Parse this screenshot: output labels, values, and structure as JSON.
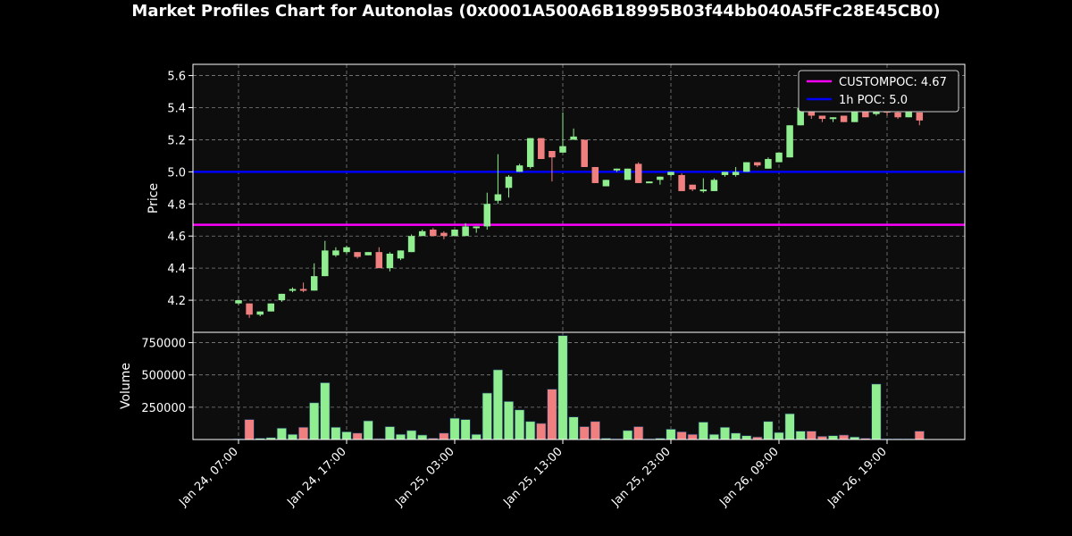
{
  "title": "Market Profiles Chart for Autonolas (0x0001A500A6B18995B03f44bb040A5fFc28E45CB0)",
  "colors": {
    "background": "#000000",
    "plot_background": "#0d0d0d",
    "up": "#90ee90",
    "down": "#f08080",
    "text": "#ffffff",
    "grid": "#808080",
    "custompoc": "#ff00ff",
    "poc_1h": "#0000ff"
  },
  "chart_data": [
    {
      "type": "candlestick",
      "ylabel": "Price",
      "ylim": [
        4.0,
        5.67
      ],
      "yticks": [
        4.2,
        4.4,
        4.6,
        4.8,
        5.0,
        5.2,
        5.4,
        5.6
      ],
      "ytick_labels": [
        "4.2",
        "4.4",
        "4.6",
        "4.8",
        "5.0",
        "5.2",
        "5.4",
        "5.6"
      ],
      "grid": true,
      "legend_position": "top-right",
      "x_hours_start": "Jan 24, 07:00",
      "x_step_hours": 1,
      "candles": [
        [
          4.18,
          4.2,
          4.17,
          4.2
        ],
        [
          4.18,
          4.18,
          4.09,
          4.11
        ],
        [
          4.11,
          4.13,
          4.1,
          4.13
        ],
        [
          4.13,
          4.18,
          4.13,
          4.18
        ],
        [
          4.2,
          4.24,
          4.19,
          4.24
        ],
        [
          4.26,
          4.28,
          4.25,
          4.27
        ],
        [
          4.27,
          4.31,
          4.25,
          4.26
        ],
        [
          4.26,
          4.43,
          4.26,
          4.35
        ],
        [
          4.35,
          4.57,
          4.35,
          4.51
        ],
        [
          4.48,
          4.53,
          4.47,
          4.51
        ],
        [
          4.5,
          4.54,
          4.49,
          4.53
        ],
        [
          4.5,
          4.5,
          4.46,
          4.47
        ],
        [
          4.48,
          4.5,
          4.48,
          4.5
        ],
        [
          4.5,
          4.53,
          4.4,
          4.4
        ],
        [
          4.4,
          4.5,
          4.38,
          4.49
        ],
        [
          4.46,
          4.51,
          4.45,
          4.51
        ],
        [
          4.5,
          4.61,
          4.5,
          4.6
        ],
        [
          4.6,
          4.64,
          4.6,
          4.63
        ],
        [
          4.64,
          4.65,
          4.6,
          4.6
        ],
        [
          4.62,
          4.63,
          4.58,
          4.6
        ],
        [
          4.6,
          4.64,
          4.6,
          4.64
        ],
        [
          4.6,
          4.68,
          4.6,
          4.66
        ],
        [
          4.66,
          4.66,
          4.62,
          4.66
        ],
        [
          4.66,
          4.87,
          4.64,
          4.8
        ],
        [
          4.82,
          5.11,
          4.8,
          4.86
        ],
        [
          4.9,
          4.98,
          4.84,
          4.97
        ],
        [
          5.0,
          5.05,
          5.0,
          5.04
        ],
        [
          5.03,
          5.21,
          5.02,
          5.21
        ],
        [
          5.21,
          5.21,
          5.08,
          5.08
        ],
        [
          5.13,
          5.13,
          4.94,
          5.09
        ],
        [
          5.12,
          5.37,
          5.12,
          5.16
        ],
        [
          5.2,
          5.27,
          5.2,
          5.22
        ],
        [
          5.2,
          5.2,
          5.03,
          5.03
        ],
        [
          5.03,
          5.03,
          4.93,
          4.93
        ],
        [
          4.91,
          4.95,
          4.91,
          4.95
        ],
        [
          5.01,
          5.02,
          5.0,
          5.02
        ],
        [
          4.95,
          5.02,
          4.95,
          5.02
        ],
        [
          5.05,
          5.06,
          4.93,
          4.93
        ],
        [
          4.93,
          4.94,
          4.93,
          4.94
        ],
        [
          4.95,
          4.97,
          4.92,
          4.97
        ],
        [
          4.98,
          5.0,
          4.97,
          5.0
        ],
        [
          4.98,
          4.99,
          4.88,
          4.88
        ],
        [
          4.92,
          4.92,
          4.88,
          4.89
        ],
        [
          4.88,
          4.96,
          4.87,
          4.89
        ],
        [
          4.88,
          4.96,
          4.88,
          4.95
        ],
        [
          4.98,
          5.0,
          4.97,
          5.0
        ],
        [
          4.98,
          5.03,
          4.97,
          5.0
        ],
        [
          5.0,
          5.06,
          5.0,
          5.06
        ],
        [
          5.06,
          5.06,
          5.03,
          5.04
        ],
        [
          5.02,
          5.09,
          5.02,
          5.08
        ],
        [
          5.06,
          5.12,
          5.06,
          5.12
        ],
        [
          5.09,
          5.29,
          5.09,
          5.29
        ],
        [
          5.29,
          5.4,
          5.29,
          5.4
        ],
        [
          5.39,
          5.39,
          5.33,
          5.35
        ],
        [
          5.35,
          5.35,
          5.31,
          5.33
        ],
        [
          5.33,
          5.34,
          5.31,
          5.34
        ],
        [
          5.35,
          5.35,
          5.31,
          5.31
        ],
        [
          5.31,
          5.4,
          5.31,
          5.4
        ],
        [
          5.39,
          5.39,
          5.34,
          5.34
        ],
        [
          5.36,
          5.4,
          5.35,
          5.4
        ],
        [
          5.38,
          5.4,
          5.35,
          5.37
        ],
        [
          5.37,
          5.38,
          5.33,
          5.34
        ],
        [
          5.34,
          5.4,
          5.34,
          5.4
        ],
        [
          5.37,
          5.37,
          5.29,
          5.32
        ]
      ],
      "lines": [
        {
          "name": "CUSTOMPOC: 4.67",
          "value": 4.67,
          "color": "#ff00ff"
        },
        {
          "name": "1h POC: 5.0",
          "value": 5.0,
          "color": "#0000ff"
        }
      ]
    },
    {
      "type": "bar",
      "ylabel": "Volume",
      "ylim": [
        0,
        830000
      ],
      "yticks": [
        250000,
        500000,
        750000
      ],
      "ytick_labels": [
        "250000",
        "500000",
        "750000"
      ],
      "xtick_labels": [
        "Jan 24, 07:00",
        "Jan 24, 17:00",
        "Jan 25, 03:00",
        "Jan 25, 13:00",
        "Jan 25, 23:00",
        "Jan 26, 09:00",
        "Jan 26, 19:00"
      ],
      "xtick_index": [
        0,
        10,
        20,
        30,
        40,
        50,
        60
      ],
      "grid": true,
      "values": [
        5000,
        155000,
        10000,
        15000,
        88000,
        40000,
        95000,
        285000,
        440000,
        95000,
        60000,
        50000,
        145000,
        7000,
        100000,
        40000,
        70000,
        35000,
        10000,
        50000,
        165000,
        155000,
        40000,
        360000,
        540000,
        295000,
        230000,
        140000,
        125000,
        390000,
        805000,
        175000,
        100000,
        140000,
        10000,
        5000,
        70000,
        100000,
        5000,
        10000,
        80000,
        60000,
        40000,
        135000,
        40000,
        95000,
        50000,
        30000,
        20000,
        140000,
        55000,
        200000,
        65000,
        65000,
        25000,
        30000,
        35000,
        20000,
        10000,
        430000,
        5000,
        5000,
        5000,
        65000
      ]
    }
  ]
}
